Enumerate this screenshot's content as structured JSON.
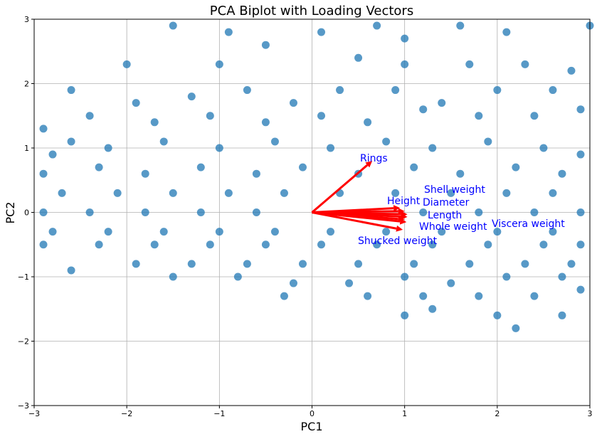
{
  "chart_data": {
    "type": "scatter",
    "title": "PCA Biplot with Loading Vectors",
    "xlabel": "PC1",
    "ylabel": "PC2",
    "xlim": [
      -3,
      3
    ],
    "ylim": [
      -3,
      3
    ],
    "x_ticks": [
      -3,
      -2,
      -1,
      0,
      1,
      2,
      3
    ],
    "y_ticks": [
      -3,
      -2,
      -1,
      0,
      1,
      2,
      3
    ],
    "x_tick_labels": [
      "−3",
      "−2",
      "−1",
      "0",
      "1",
      "2",
      "3"
    ],
    "y_tick_labels": [
      "−3",
      "−2",
      "−1",
      "0",
      "1",
      "2",
      "3"
    ],
    "grid": true,
    "colors": {
      "points": "#1f77b4",
      "vectors": "#ff0000",
      "vector_labels": "#0000ff",
      "grid": "#b0b0b0"
    },
    "series": [
      {
        "points": [
          [
            -2.6,
            1.1
          ],
          [
            -1.5,
            2.9
          ],
          [
            -0.9,
            2.8
          ],
          [
            0.1,
            2.8
          ],
          [
            0.7,
            2.9
          ],
          [
            1.0,
            2.7
          ],
          [
            1.6,
            2.9
          ],
          [
            2.1,
            2.8
          ],
          [
            3.0,
            2.9
          ],
          [
            -2.0,
            2.3
          ],
          [
            -1.0,
            2.3
          ],
          [
            -0.5,
            2.6
          ],
          [
            0.5,
            2.4
          ],
          [
            1.0,
            2.3
          ],
          [
            1.7,
            2.3
          ],
          [
            2.3,
            2.3
          ],
          [
            2.8,
            2.2
          ],
          [
            -2.6,
            1.9
          ],
          [
            -1.9,
            1.7
          ],
          [
            -1.3,
            1.8
          ],
          [
            -0.7,
            1.9
          ],
          [
            -0.2,
            1.7
          ],
          [
            0.3,
            1.9
          ],
          [
            0.9,
            1.9
          ],
          [
            1.4,
            1.7
          ],
          [
            2.0,
            1.9
          ],
          [
            2.6,
            1.9
          ],
          [
            -2.9,
            1.3
          ],
          [
            -2.4,
            1.5
          ],
          [
            -1.7,
            1.4
          ],
          [
            -1.1,
            1.5
          ],
          [
            -0.5,
            1.4
          ],
          [
            0.1,
            1.5
          ],
          [
            0.6,
            1.4
          ],
          [
            1.2,
            1.6
          ],
          [
            1.8,
            1.5
          ],
          [
            2.4,
            1.5
          ],
          [
            2.9,
            1.6
          ],
          [
            -2.8,
            0.9
          ],
          [
            -2.2,
            1.0
          ],
          [
            -1.6,
            1.1
          ],
          [
            -1.0,
            1.0
          ],
          [
            -0.4,
            1.1
          ],
          [
            0.2,
            1.0
          ],
          [
            0.8,
            1.1
          ],
          [
            1.3,
            1.0
          ],
          [
            1.9,
            1.1
          ],
          [
            2.5,
            1.0
          ],
          [
            2.9,
            0.9
          ],
          [
            -2.9,
            0.6
          ],
          [
            -2.3,
            0.7
          ],
          [
            -1.8,
            0.6
          ],
          [
            -1.2,
            0.7
          ],
          [
            -0.6,
            0.6
          ],
          [
            -0.1,
            0.7
          ],
          [
            0.5,
            0.6
          ],
          [
            1.1,
            0.7
          ],
          [
            1.6,
            0.6
          ],
          [
            2.2,
            0.7
          ],
          [
            2.7,
            0.6
          ],
          [
            -2.7,
            0.3
          ],
          [
            -2.1,
            0.3
          ],
          [
            -1.5,
            0.3
          ],
          [
            -0.9,
            0.3
          ],
          [
            -0.3,
            0.3
          ],
          [
            0.3,
            0.3
          ],
          [
            0.9,
            0.3
          ],
          [
            1.5,
            0.3
          ],
          [
            2.1,
            0.3
          ],
          [
            2.6,
            0.3
          ],
          [
            -2.9,
            0.0
          ],
          [
            -2.4,
            0.0
          ],
          [
            -1.8,
            0.0
          ],
          [
            -1.2,
            0.0
          ],
          [
            -0.6,
            0.0
          ],
          [
            0.6,
            0.0
          ],
          [
            1.2,
            0.0
          ],
          [
            1.8,
            0.0
          ],
          [
            2.4,
            0.0
          ],
          [
            2.9,
            0.0
          ],
          [
            -2.8,
            -0.3
          ],
          [
            -2.2,
            -0.3
          ],
          [
            -1.6,
            -0.3
          ],
          [
            -1.0,
            -0.3
          ],
          [
            -0.4,
            -0.3
          ],
          [
            0.2,
            -0.3
          ],
          [
            0.8,
            -0.3
          ],
          [
            1.4,
            -0.3
          ],
          [
            2.0,
            -0.3
          ],
          [
            2.6,
            -0.3
          ],
          [
            -2.9,
            -0.5
          ],
          [
            -2.3,
            -0.5
          ],
          [
            -1.7,
            -0.5
          ],
          [
            -1.1,
            -0.5
          ],
          [
            -0.5,
            -0.5
          ],
          [
            0.1,
            -0.5
          ],
          [
            0.7,
            -0.5
          ],
          [
            1.3,
            -0.5
          ],
          [
            1.9,
            -0.5
          ],
          [
            2.5,
            -0.5
          ],
          [
            2.9,
            -0.5
          ],
          [
            -2.6,
            -0.9
          ],
          [
            -1.9,
            -0.8
          ],
          [
            -1.3,
            -0.8
          ],
          [
            -0.7,
            -0.8
          ],
          [
            -0.1,
            -0.8
          ],
          [
            0.5,
            -0.8
          ],
          [
            1.1,
            -0.8
          ],
          [
            1.7,
            -0.8
          ],
          [
            2.3,
            -0.8
          ],
          [
            2.8,
            -0.8
          ],
          [
            -1.5,
            -1.0
          ],
          [
            -0.8,
            -1.0
          ],
          [
            -0.2,
            -1.1
          ],
          [
            0.4,
            -1.1
          ],
          [
            1.0,
            -1.0
          ],
          [
            1.5,
            -1.1
          ],
          [
            2.1,
            -1.0
          ],
          [
            2.7,
            -1.0
          ],
          [
            -0.3,
            -1.3
          ],
          [
            0.6,
            -1.3
          ],
          [
            1.2,
            -1.3
          ],
          [
            1.8,
            -1.3
          ],
          [
            2.4,
            -1.3
          ],
          [
            2.9,
            -1.2
          ],
          [
            1.3,
            -1.5
          ],
          [
            1.0,
            -1.6
          ],
          [
            2.0,
            -1.6
          ],
          [
            2.7,
            -1.6
          ],
          [
            2.2,
            -1.8
          ]
        ]
      }
    ],
    "vectors": [
      {
        "label": "Rings",
        "x": 0.65,
        "y": 0.8
      },
      {
        "label": "Height",
        "x": 0.95,
        "y": 0.07
      },
      {
        "label": "Shell weight",
        "x": 1.0,
        "y": 0.02
      },
      {
        "label": "Diameter",
        "x": 1.03,
        "y": -0.03
      },
      {
        "label": "Length",
        "x": 1.03,
        "y": -0.07
      },
      {
        "label": "Whole weight",
        "x": 1.02,
        "y": -0.15
      },
      {
        "label": "Viscera weight",
        "x": 1.0,
        "y": -0.11
      },
      {
        "label": "Shucked weight",
        "x": 0.98,
        "y": -0.27
      }
    ]
  }
}
